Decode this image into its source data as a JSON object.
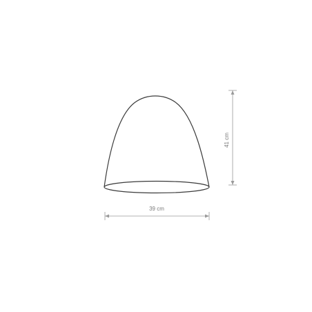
{
  "diagram": {
    "subject": "lampshade",
    "colors": {
      "background": "#ffffff",
      "outline": "#3a3a3a",
      "dimension_line": "#9a9a9a",
      "dimension_text": "#7a7a7a"
    },
    "dimensions": {
      "width": {
        "value": 39,
        "unit": "cm",
        "label": "39 cm"
      },
      "height": {
        "value": 41,
        "unit": "cm",
        "label": "41 cm"
      }
    }
  }
}
